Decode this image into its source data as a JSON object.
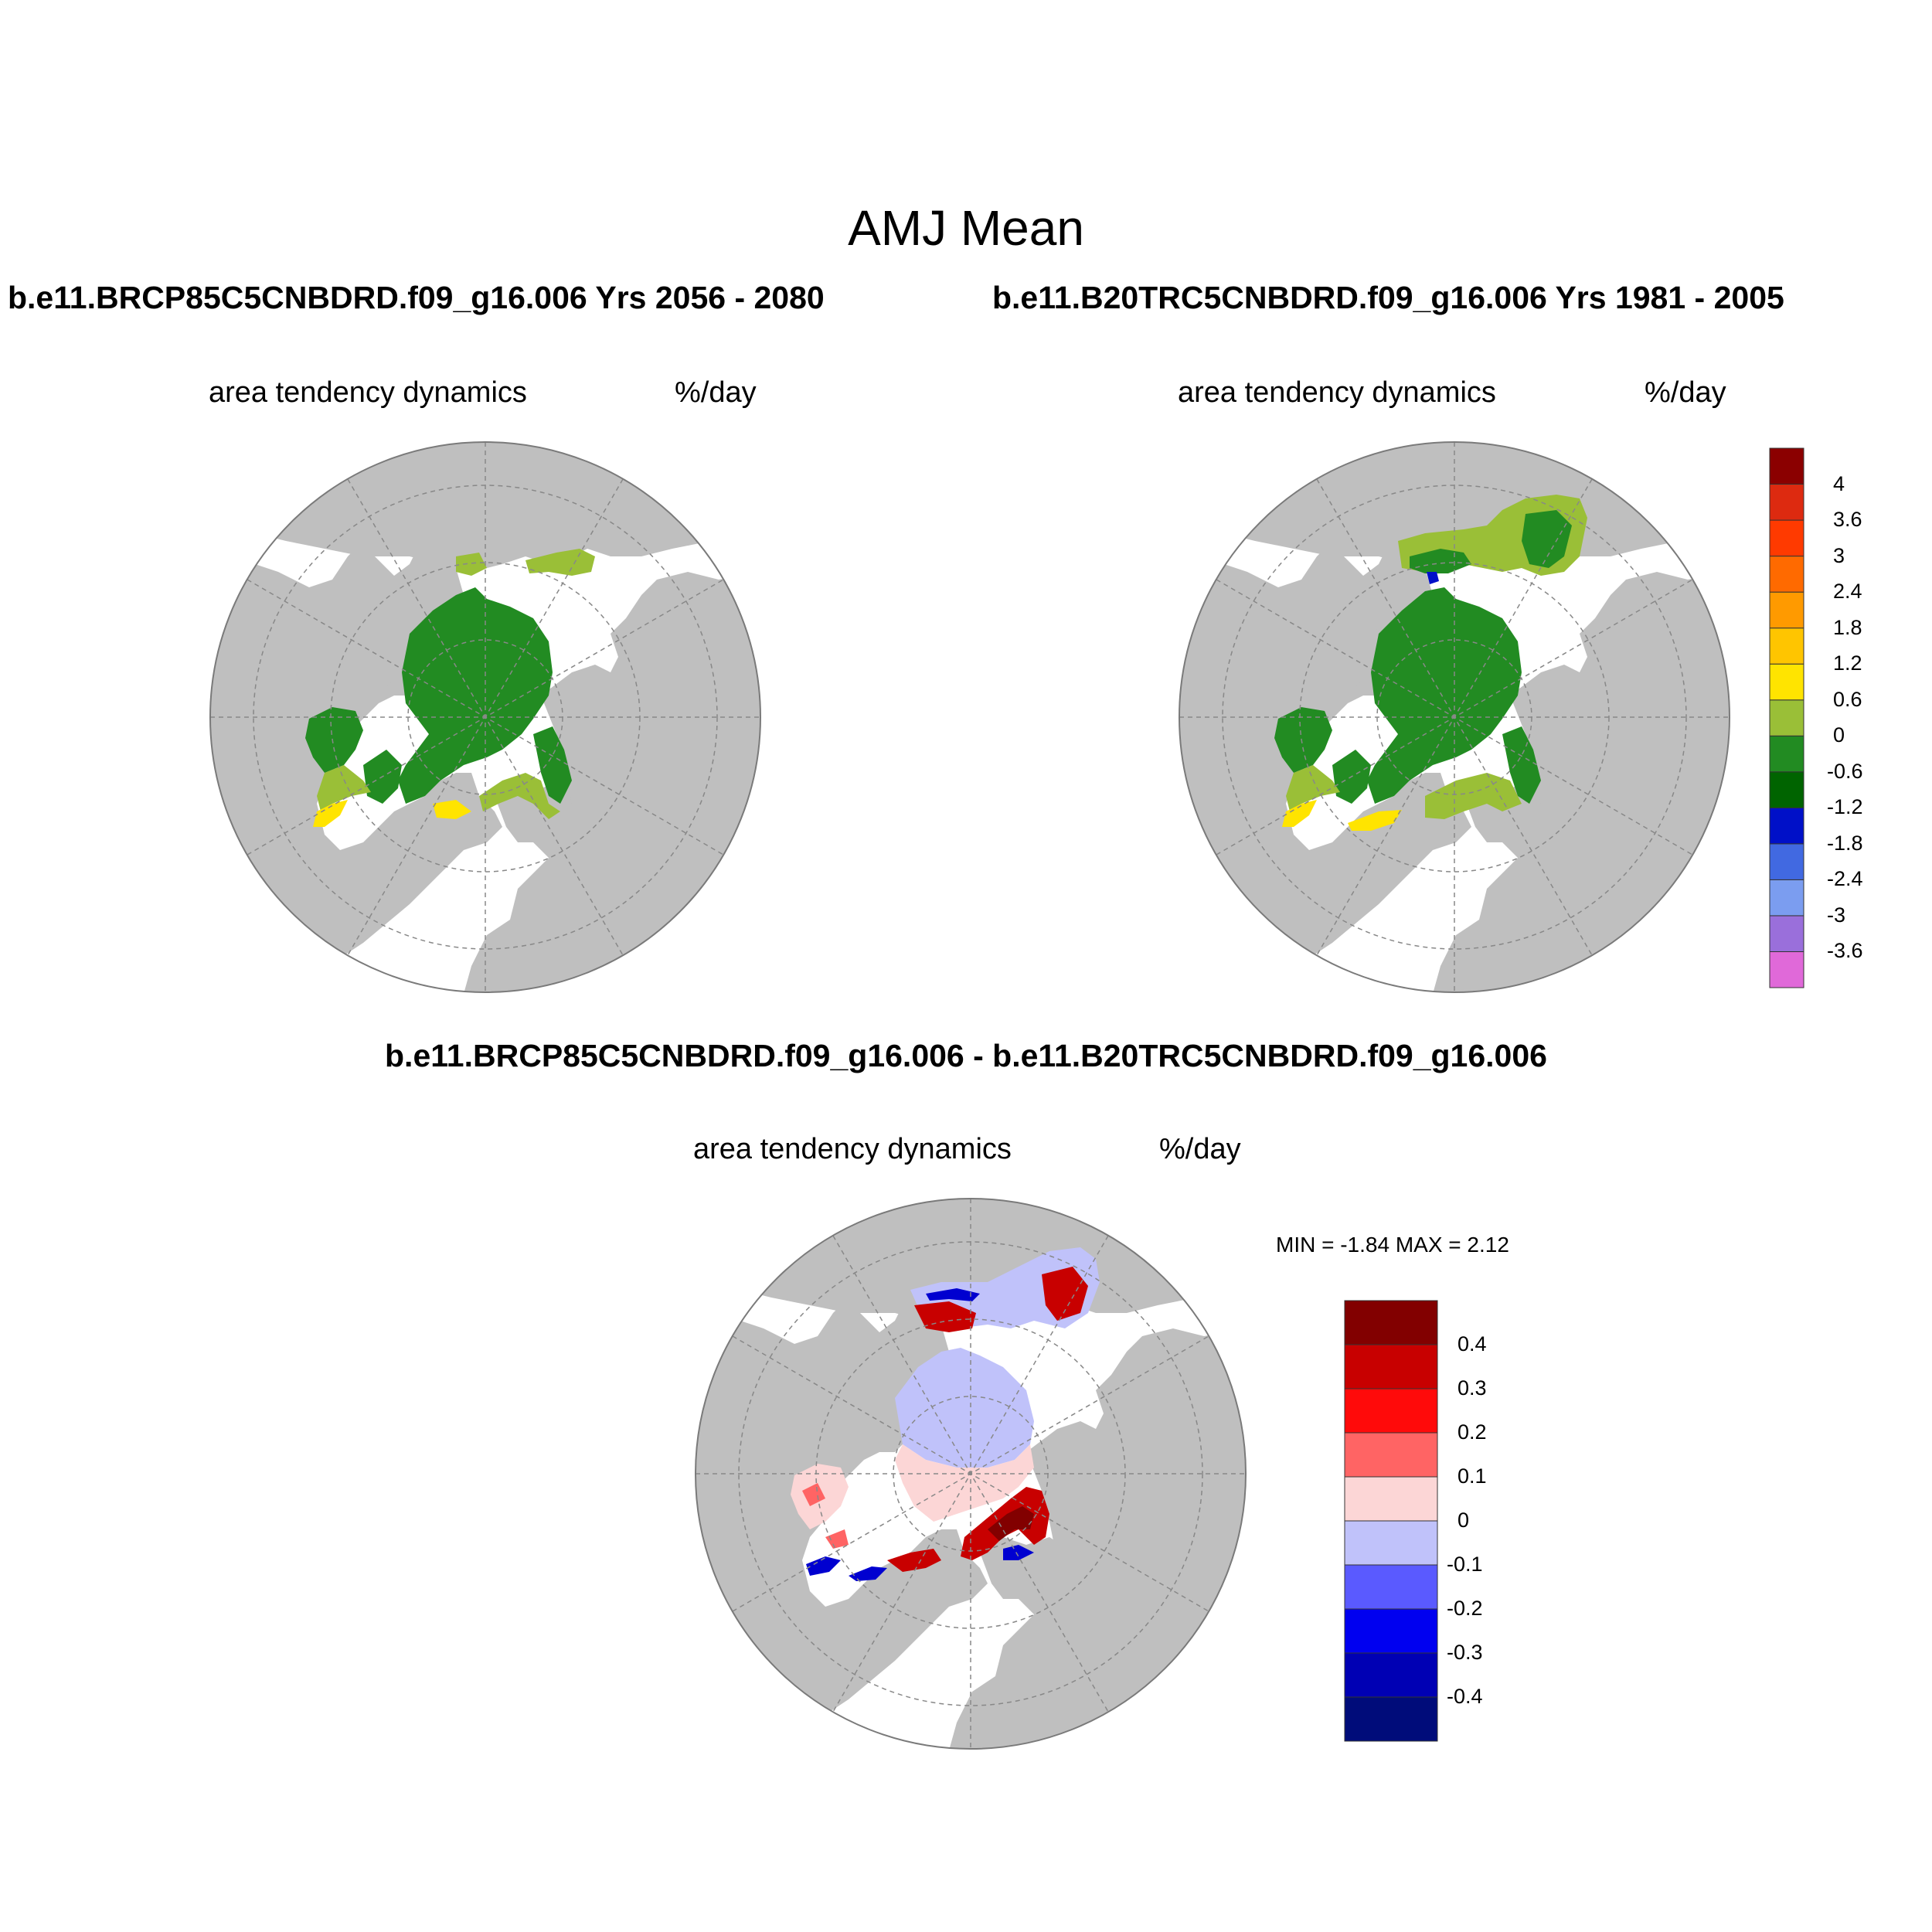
{
  "title": "AMJ Mean",
  "panels": {
    "left": {
      "case_title": "b.e11.BRCP85C5CNBDRD.f09_g16.006  Yrs 2056 - 2080",
      "variable": "area tendency dynamics",
      "units": "%/day"
    },
    "right": {
      "case_title": "b.e11.B20TRC5CNBDRD.f09_g16.006  Yrs 1981 - 2005",
      "variable": "area tendency dynamics",
      "units": "%/day"
    },
    "diff": {
      "case_title": "b.e11.BRCP85C5CNBDRD.f09_g16.006 - b.e11.B20TRC5CNBDRD.f09_g16.006",
      "variable": "area tendency dynamics",
      "units": "%/day",
      "minmax": "MIN =  -1.84 MAX =   2.12"
    }
  },
  "colorbar_main": {
    "colors": [
      "#e069d9",
      "#9a6fdb",
      "#7b9df0",
      "#4169e1",
      "#0010c8",
      "#006400",
      "#228b22",
      "#9abf37",
      "#ffe400",
      "#ffc500",
      "#ff9a00",
      "#ff6a00",
      "#ff3a00",
      "#dd2a10",
      "#8b0000"
    ],
    "labels": [
      "-3.6",
      "-3",
      "-2.4",
      "-1.8",
      "-1.2",
      "-0.6",
      "0",
      "0.6",
      "1.2",
      "1.8",
      "2.4",
      "3",
      "3.6",
      "4"
    ]
  },
  "colorbar_diff": {
    "colors": [
      "#000c7a",
      "#0000b4",
      "#0000f0",
      "#5a5aff",
      "#c0c2fa",
      "#fcd6d6",
      "#ff6464",
      "#ff0a0a",
      "#c80000",
      "#820000"
    ],
    "labels": [
      "-0.4",
      "-0.3",
      "-0.2",
      "-0.1",
      "0",
      "0.1",
      "0.2",
      "0.3",
      "0.4"
    ]
  },
  "colors": {
    "land": "#bfbfbf",
    "ocean": "#ffffff",
    "ice_green": "#228b22",
    "ice_lightgreen": "#9abf37",
    "ice_yellow": "#ffe400",
    "diff_pos": "#c80000",
    "diff_neg": "#0000d0",
    "diff_lightpos": "#fcd6d6",
    "diff_lightneg": "#c0c2fa"
  }
}
